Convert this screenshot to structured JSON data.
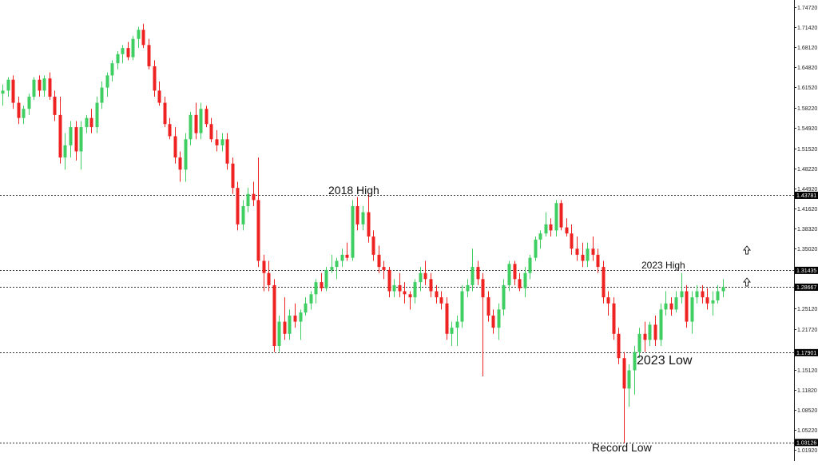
{
  "chart_data": {
    "type": "candlestick",
    "title": "",
    "xlabel": "",
    "ylabel": "",
    "ylim": [
      1.0192,
      1.7472
    ],
    "grid": false,
    "colors": {
      "up": "#3fce62",
      "down": "#ef2222",
      "level": "#333333",
      "level_box": "#000000"
    },
    "y_ticks": [
      "1.74720",
      "1.71420",
      "1.68120",
      "1.64820",
      "1.61520",
      "1.58220",
      "1.54920",
      "1.51520",
      "1.48220",
      "1.44920",
      "1.41620",
      "1.38320",
      "1.35020",
      "1.31435",
      "1.28667",
      "1.25120",
      "1.21720",
      "1.17901",
      "1.15120",
      "1.11820",
      "1.08520",
      "1.05220",
      "1.03126",
      "1.01920"
    ],
    "y_tick_values": [
      1.7472,
      1.7142,
      1.6812,
      1.6482,
      1.6152,
      1.5822,
      1.5492,
      1.5152,
      1.4822,
      1.4492,
      1.4162,
      1.3832,
      1.3502,
      1.31435,
      1.28667,
      1.2512,
      1.2172,
      1.17901,
      1.1512,
      1.1182,
      1.0852,
      1.0522,
      1.03126,
      1.0192
    ],
    "levels": [
      {
        "value": 1.43781,
        "label": "1.43781"
      },
      {
        "value": 1.31435,
        "label": "1.31435"
      },
      {
        "value": 1.28667,
        "label": "1.28667"
      },
      {
        "value": 1.17901,
        "label": "1.17901"
      },
      {
        "value": 1.03126,
        "label": "1.03126"
      }
    ],
    "annotations": [
      {
        "text": "2018 High",
        "value": 1.4378
      },
      {
        "text": "2023 High",
        "value": 1.3143
      },
      {
        "text": "2023 Low",
        "value": 1.179
      },
      {
        "text": "Record Low",
        "value": 1.0313
      }
    ],
    "arrows": [
      {
        "icon": "up-arrow-icon",
        "value": 1.341
      },
      {
        "icon": "up-arrow-icon",
        "value": 1.296
      }
    ],
    "candles": [
      [
        1.605,
        1.62,
        1.585,
        1.61
      ],
      [
        1.61,
        1.632,
        1.6,
        1.628
      ],
      [
        1.628,
        1.635,
        1.58,
        1.59
      ],
      [
        1.59,
        1.6,
        1.555,
        1.565
      ],
      [
        1.565,
        1.585,
        1.555,
        1.58
      ],
      [
        1.58,
        1.605,
        1.57,
        1.6
      ],
      [
        1.6,
        1.632,
        1.595,
        1.628
      ],
      [
        1.628,
        1.635,
        1.6,
        1.61
      ],
      [
        1.61,
        1.635,
        1.6,
        1.63
      ],
      [
        1.63,
        1.64,
        1.595,
        1.6
      ],
      [
        1.6,
        1.61,
        1.56,
        1.57
      ],
      [
        1.57,
        1.6,
        1.49,
        1.5
      ],
      [
        1.5,
        1.54,
        1.48,
        1.52
      ],
      [
        1.52,
        1.56,
        1.5,
        1.55
      ],
      [
        1.55,
        1.56,
        1.495,
        1.51
      ],
      [
        1.51,
        1.56,
        1.48,
        1.55
      ],
      [
        1.55,
        1.57,
        1.54,
        1.565
      ],
      [
        1.565,
        1.58,
        1.54,
        1.55
      ],
      [
        1.55,
        1.6,
        1.54,
        1.59
      ],
      [
        1.59,
        1.625,
        1.58,
        1.615
      ],
      [
        1.615,
        1.64,
        1.6,
        1.635
      ],
      [
        1.635,
        1.66,
        1.625,
        1.655
      ],
      [
        1.655,
        1.675,
        1.645,
        1.67
      ],
      [
        1.67,
        1.685,
        1.655,
        1.68
      ],
      [
        1.68,
        1.69,
        1.66,
        1.665
      ],
      [
        1.665,
        1.7,
        1.66,
        1.695
      ],
      [
        1.695,
        1.715,
        1.68,
        1.71
      ],
      [
        1.71,
        1.72,
        1.68,
        1.685
      ],
      [
        1.685,
        1.695,
        1.645,
        1.65
      ],
      [
        1.65,
        1.66,
        1.6,
        1.61
      ],
      [
        1.61,
        1.625,
        1.585,
        1.59
      ],
      [
        1.59,
        1.6,
        1.55,
        1.555
      ],
      [
        1.555,
        1.565,
        1.53,
        1.535
      ],
      [
        1.535,
        1.55,
        1.49,
        1.5
      ],
      [
        1.5,
        1.51,
        1.46,
        1.48
      ],
      [
        1.48,
        1.54,
        1.46,
        1.53
      ],
      [
        1.53,
        1.575,
        1.52,
        1.57
      ],
      [
        1.57,
        1.59,
        1.53,
        1.54
      ],
      [
        1.54,
        1.59,
        1.53,
        1.58
      ],
      [
        1.58,
        1.585,
        1.55,
        1.555
      ],
      [
        1.555,
        1.565,
        1.525,
        1.53
      ],
      [
        1.53,
        1.545,
        1.51,
        1.52
      ],
      [
        1.52,
        1.54,
        1.51,
        1.53
      ],
      [
        1.53,
        1.54,
        1.48,
        1.49
      ],
      [
        1.49,
        1.5,
        1.44,
        1.45
      ],
      [
        1.45,
        1.46,
        1.38,
        1.39
      ],
      [
        1.39,
        1.43,
        1.38,
        1.42
      ],
      [
        1.42,
        1.45,
        1.41,
        1.44
      ],
      [
        1.44,
        1.46,
        1.42,
        1.43
      ],
      [
        1.43,
        1.5,
        1.32,
        1.33
      ],
      [
        1.33,
        1.34,
        1.28,
        1.31
      ],
      [
        1.31,
        1.33,
        1.28,
        1.29
      ],
      [
        1.29,
        1.3,
        1.18,
        1.19
      ],
      [
        1.19,
        1.24,
        1.18,
        1.23
      ],
      [
        1.23,
        1.27,
        1.2,
        1.21
      ],
      [
        1.21,
        1.25,
        1.2,
        1.24
      ],
      [
        1.24,
        1.26,
        1.22,
        1.23
      ],
      [
        1.23,
        1.25,
        1.2,
        1.245
      ],
      [
        1.245,
        1.27,
        1.24,
        1.26
      ],
      [
        1.26,
        1.28,
        1.25,
        1.275
      ],
      [
        1.275,
        1.3,
        1.26,
        1.295
      ],
      [
        1.295,
        1.31,
        1.28,
        1.285
      ],
      [
        1.285,
        1.32,
        1.28,
        1.315
      ],
      [
        1.315,
        1.34,
        1.31,
        1.32
      ],
      [
        1.32,
        1.335,
        1.3,
        1.33
      ],
      [
        1.33,
        1.35,
        1.32,
        1.34
      ],
      [
        1.34,
        1.36,
        1.33,
        1.335
      ],
      [
        1.335,
        1.43,
        1.33,
        1.42
      ],
      [
        1.42,
        1.435,
        1.38,
        1.39
      ],
      [
        1.39,
        1.42,
        1.38,
        1.41
      ],
      [
        1.41,
        1.44,
        1.36,
        1.37
      ],
      [
        1.37,
        1.38,
        1.33,
        1.34
      ],
      [
        1.34,
        1.355,
        1.31,
        1.32
      ],
      [
        1.32,
        1.33,
        1.3,
        1.315
      ],
      [
        1.315,
        1.32,
        1.27,
        1.28
      ],
      [
        1.28,
        1.3,
        1.27,
        1.29
      ],
      [
        1.29,
        1.31,
        1.27,
        1.28
      ],
      [
        1.28,
        1.295,
        1.26,
        1.275
      ],
      [
        1.275,
        1.28,
        1.25,
        1.27
      ],
      [
        1.27,
        1.3,
        1.26,
        1.295
      ],
      [
        1.295,
        1.32,
        1.28,
        1.31
      ],
      [
        1.31,
        1.33,
        1.29,
        1.3
      ],
      [
        1.3,
        1.31,
        1.27,
        1.28
      ],
      [
        1.28,
        1.29,
        1.26,
        1.27
      ],
      [
        1.27,
        1.28,
        1.25,
        1.26
      ],
      [
        1.26,
        1.27,
        1.2,
        1.21
      ],
      [
        1.21,
        1.23,
        1.19,
        1.22
      ],
      [
        1.22,
        1.24,
        1.19,
        1.23
      ],
      [
        1.23,
        1.29,
        1.22,
        1.28
      ],
      [
        1.28,
        1.3,
        1.27,
        1.29
      ],
      [
        1.29,
        1.35,
        1.28,
        1.32
      ],
      [
        1.32,
        1.33,
        1.29,
        1.3
      ],
      [
        1.3,
        1.31,
        1.14,
        1.27
      ],
      [
        1.27,
        1.28,
        1.23,
        1.24
      ],
      [
        1.24,
        1.25,
        1.21,
        1.22
      ],
      [
        1.22,
        1.26,
        1.2,
        1.25
      ],
      [
        1.25,
        1.3,
        1.24,
        1.29
      ],
      [
        1.29,
        1.33,
        1.28,
        1.325
      ],
      [
        1.325,
        1.33,
        1.29,
        1.3
      ],
      [
        1.3,
        1.31,
        1.28,
        1.285
      ],
      [
        1.285,
        1.32,
        1.27,
        1.31
      ],
      [
        1.31,
        1.34,
        1.3,
        1.335
      ],
      [
        1.335,
        1.37,
        1.33,
        1.365
      ],
      [
        1.365,
        1.38,
        1.35,
        1.375
      ],
      [
        1.375,
        1.41,
        1.37,
        1.39
      ],
      [
        1.39,
        1.4,
        1.37,
        1.38
      ],
      [
        1.38,
        1.43,
        1.37,
        1.425
      ],
      [
        1.425,
        1.43,
        1.38,
        1.385
      ],
      [
        1.385,
        1.4,
        1.37,
        1.375
      ],
      [
        1.375,
        1.39,
        1.34,
        1.35
      ],
      [
        1.35,
        1.37,
        1.33,
        1.34
      ],
      [
        1.34,
        1.36,
        1.32,
        1.33
      ],
      [
        1.33,
        1.36,
        1.32,
        1.35
      ],
      [
        1.35,
        1.37,
        1.33,
        1.34
      ],
      [
        1.34,
        1.35,
        1.31,
        1.32
      ],
      [
        1.32,
        1.33,
        1.26,
        1.27
      ],
      [
        1.27,
        1.28,
        1.24,
        1.26
      ],
      [
        1.26,
        1.27,
        1.2,
        1.21
      ],
      [
        1.21,
        1.22,
        1.16,
        1.17
      ],
      [
        1.17,
        1.18,
        1.03,
        1.12
      ],
      [
        1.12,
        1.16,
        1.09,
        1.15
      ],
      [
        1.15,
        1.19,
        1.11,
        1.18
      ],
      [
        1.18,
        1.22,
        1.17,
        1.21
      ],
      [
        1.21,
        1.23,
        1.18,
        1.2
      ],
      [
        1.2,
        1.23,
        1.19,
        1.225
      ],
      [
        1.225,
        1.24,
        1.19,
        1.2
      ],
      [
        1.2,
        1.26,
        1.19,
        1.25
      ],
      [
        1.25,
        1.28,
        1.24,
        1.26
      ],
      [
        1.26,
        1.27,
        1.24,
        1.25
      ],
      [
        1.25,
        1.28,
        1.245,
        1.27
      ],
      [
        1.27,
        1.31,
        1.26,
        1.28
      ],
      [
        1.28,
        1.29,
        1.22,
        1.23
      ],
      [
        1.23,
        1.28,
        1.21,
        1.27
      ],
      [
        1.27,
        1.29,
        1.26,
        1.28
      ],
      [
        1.28,
        1.29,
        1.26,
        1.27
      ],
      [
        1.27,
        1.285,
        1.25,
        1.26
      ],
      [
        1.26,
        1.28,
        1.24,
        1.265
      ],
      [
        1.265,
        1.29,
        1.26,
        1.28
      ],
      [
        1.28,
        1.3,
        1.27,
        1.287
      ]
    ]
  }
}
